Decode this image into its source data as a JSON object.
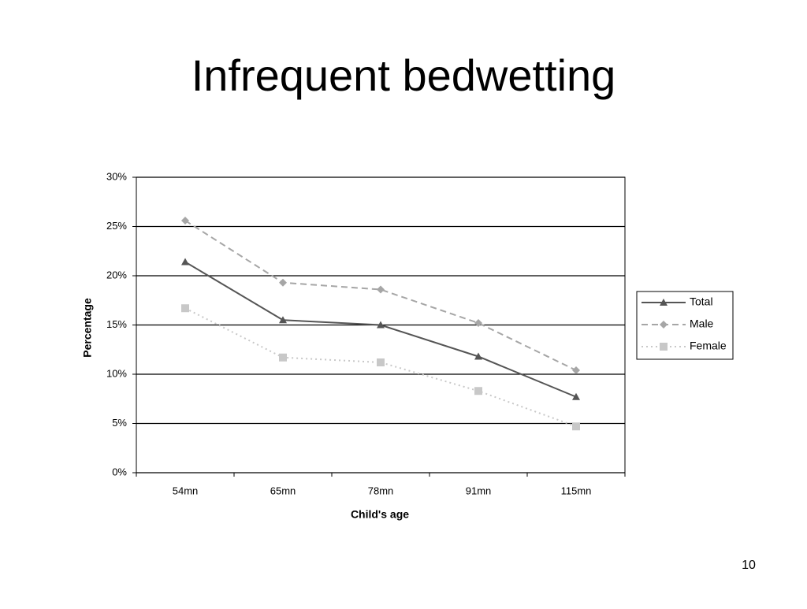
{
  "title": "Infrequent bedwetting",
  "page_number": 10,
  "chart_data": {
    "type": "line",
    "categories": [
      "54mn",
      "65mn",
      "78mn",
      "91mn",
      "115mn"
    ],
    "series": [
      {
        "name": "Total",
        "color": "#555555",
        "marker": "triangle",
        "dash": "solid",
        "values": [
          21.4,
          15.5,
          15.0,
          11.8,
          7.7
        ]
      },
      {
        "name": "Male",
        "color": "#a6a6a6",
        "marker": "diamond",
        "dash": "dashed",
        "values": [
          25.6,
          19.3,
          18.6,
          15.2,
          10.4
        ]
      },
      {
        "name": "Female",
        "color": "#c8c8c8",
        "marker": "square",
        "dash": "dotted",
        "values": [
          16.7,
          11.7,
          11.2,
          8.3,
          4.7
        ]
      }
    ],
    "ylim": [
      0,
      30
    ],
    "yticks": [
      {
        "value": 0,
        "label": "0%"
      },
      {
        "value": 5,
        "label": "5%"
      },
      {
        "value": 10,
        "label": "10%"
      },
      {
        "value": 15,
        "label": "15%"
      },
      {
        "value": 20,
        "label": "20%"
      },
      {
        "value": 25,
        "label": "25%"
      },
      {
        "value": 30,
        "label": "30%"
      }
    ],
    "ylabel": "Percentage",
    "xlabel": "Child's age",
    "grid": true,
    "legend": "right"
  }
}
